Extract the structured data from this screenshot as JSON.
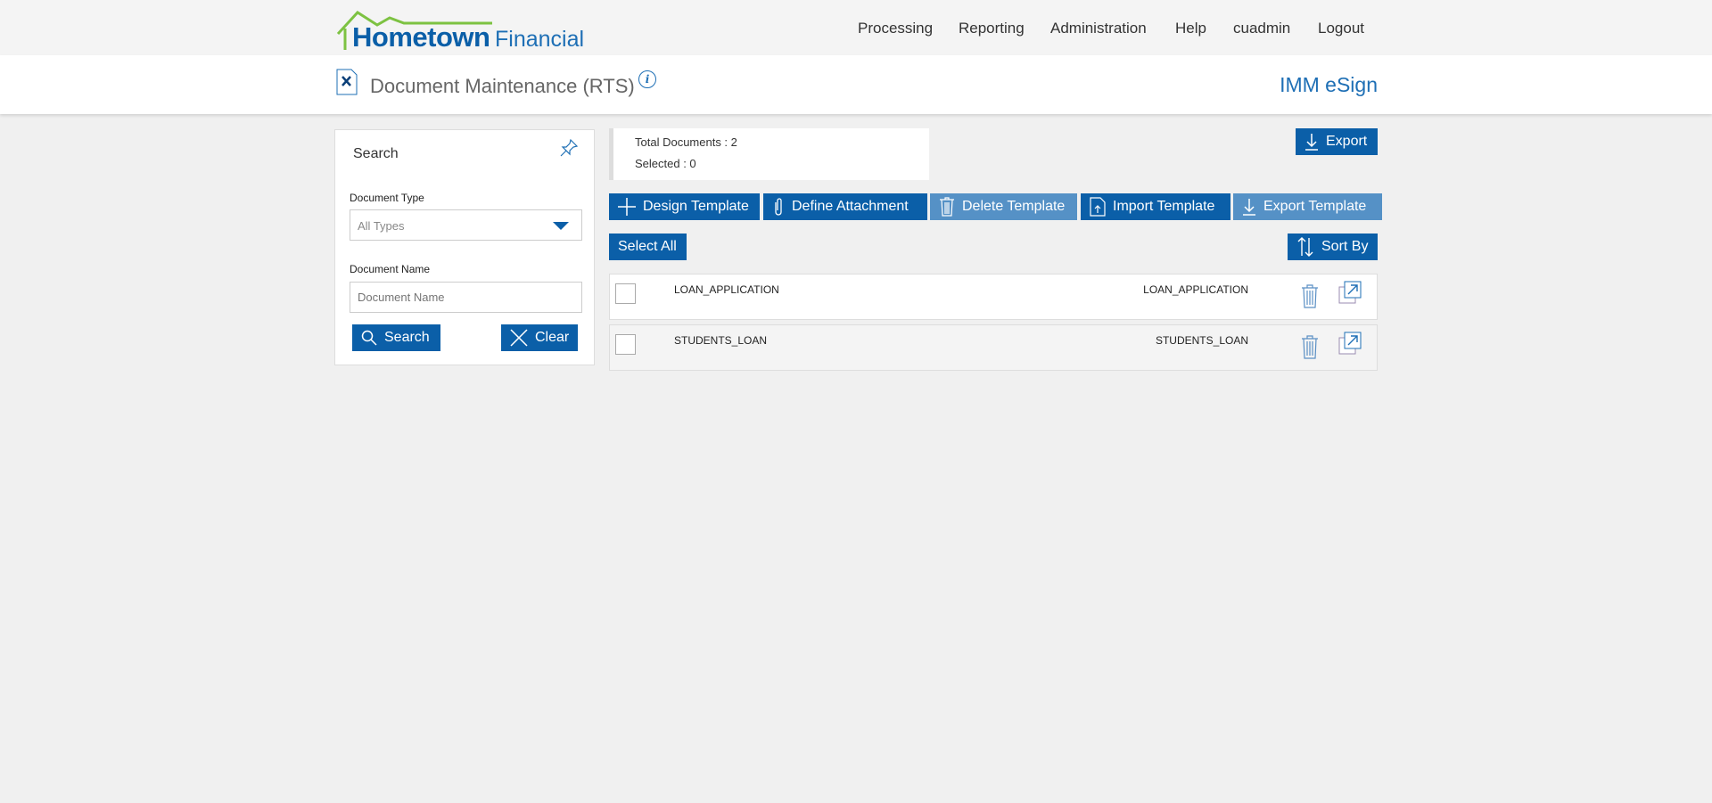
{
  "brand": {
    "name_bold": "Hometown",
    "name_light": "Financial",
    "accent": "#0b5fa8",
    "roof_color": "#7dc242"
  },
  "nav": [
    "Processing",
    "Reporting",
    "Administration",
    "Help",
    "cuadmin",
    "Logout"
  ],
  "page": {
    "title": "Document Maintenance (RTS)",
    "app_name": "IMM eSign",
    "info_icon": "i"
  },
  "search": {
    "title": "Search",
    "document_type_label": "Document Type",
    "document_type_value": "All Types",
    "document_name_label": "Document Name",
    "document_name_placeholder": "Document Name",
    "search_label": "Search",
    "clear_label": "Clear"
  },
  "summary": {
    "total": "Total Documents : 2",
    "selected": "Selected : 0"
  },
  "toolbar": {
    "export": "Export",
    "design": "Design Template",
    "define": "Define Attachment",
    "delete": "Delete Template",
    "import": "Import Template",
    "export_template": "Export Template",
    "select_all": "Select All",
    "sort_by": "Sort By"
  },
  "rows": [
    {
      "name": "LOAN_APPLICATION",
      "type": "LOAN_APPLICATION"
    },
    {
      "name": "STUDENTS_LOAN",
      "type": "STUDENTS_LOAN"
    }
  ]
}
